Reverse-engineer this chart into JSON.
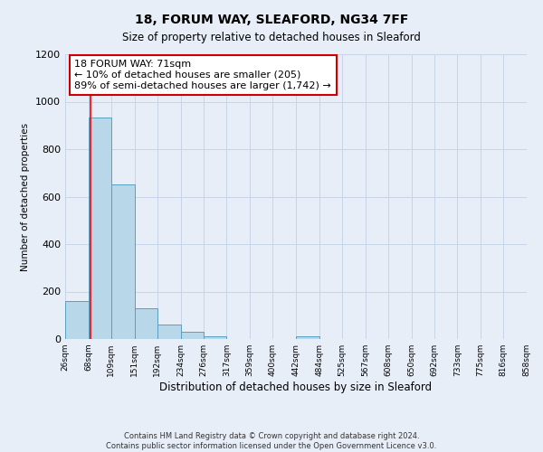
{
  "title1": "18, FORUM WAY, SLEAFORD, NG34 7FF",
  "title2": "Size of property relative to detached houses in Sleaford",
  "xlabel": "Distribution of detached houses by size in Sleaford",
  "ylabel": "Number of detached properties",
  "footnote1": "Contains HM Land Registry data © Crown copyright and database right 2024.",
  "footnote2": "Contains public sector information licensed under the Open Government Licence v3.0.",
  "bin_labels": [
    "26sqm",
    "68sqm",
    "109sqm",
    "151sqm",
    "192sqm",
    "234sqm",
    "276sqm",
    "317sqm",
    "359sqm",
    "400sqm",
    "442sqm",
    "484sqm",
    "525sqm",
    "567sqm",
    "608sqm",
    "650sqm",
    "692sqm",
    "733sqm",
    "775sqm",
    "816sqm",
    "858sqm"
  ],
  "bar_values": [
    160,
    935,
    650,
    130,
    60,
    30,
    10,
    0,
    0,
    0,
    10,
    0,
    0,
    0,
    0,
    0,
    0,
    0,
    0,
    0
  ],
  "bin_edges": [
    26,
    68,
    109,
    151,
    192,
    234,
    276,
    317,
    359,
    400,
    442,
    484,
    525,
    567,
    608,
    650,
    692,
    733,
    775,
    816,
    858
  ],
  "bar_color": "#b8d8ea",
  "bar_edge_color": "#5a9fc0",
  "red_line_x": 71,
  "ylim": [
    0,
    1200
  ],
  "yticks": [
    0,
    200,
    400,
    600,
    800,
    1000,
    1200
  ],
  "annotation_text": "18 FORUM WAY: 71sqm\n← 10% of detached houses are smaller (205)\n89% of semi-detached houses are larger (1,742) →",
  "annotation_box_color": "#ffffff",
  "annotation_box_edge": "#cc0000",
  "grid_color": "#c8d4e8",
  "bg_color": "#e8eef8"
}
